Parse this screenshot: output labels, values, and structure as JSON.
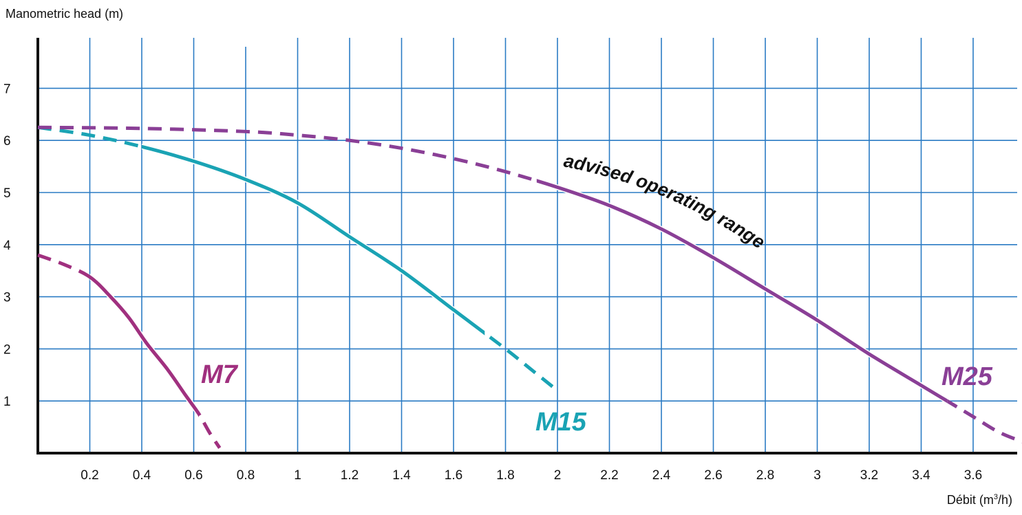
{
  "chart_data": {
    "type": "line",
    "ylabel": "Manometric head (m)",
    "xlabel": {
      "prefix": "Débit (m",
      "sup": "3",
      "suffix": "/h)"
    },
    "xlim": [
      0,
      3.8
    ],
    "ylim": [
      0,
      7.8
    ],
    "grid": true,
    "x_ticks": [
      "0.2",
      "0.4",
      "0.6",
      "0.8",
      "1",
      "1.2",
      "1.4",
      "1.6",
      "1.8",
      "2",
      "2.2",
      "2.4",
      "2.6",
      "2.8",
      "3",
      "3.2",
      "3.4",
      "3.6"
    ],
    "y_ticks": [
      "1",
      "2",
      "3",
      "4",
      "5",
      "6",
      "7"
    ],
    "annotations": [
      {
        "text": "advised operating range"
      }
    ],
    "series": [
      {
        "name": "M7",
        "color": "#a0307f",
        "points": [
          [
            0.0,
            3.8
          ],
          [
            0.1,
            3.62
          ],
          [
            0.2,
            3.38
          ],
          [
            0.28,
            3.0
          ],
          [
            0.35,
            2.6
          ],
          [
            0.42,
            2.1
          ],
          [
            0.5,
            1.6
          ],
          [
            0.57,
            1.1
          ],
          [
            0.62,
            0.75
          ],
          [
            0.66,
            0.4
          ],
          [
            0.7,
            0.1
          ]
        ],
        "solid_range": [
          0.2,
          0.62
        ]
      },
      {
        "name": "M15",
        "color": "#1aa3b4",
        "points": [
          [
            0.0,
            6.25
          ],
          [
            0.2,
            6.1
          ],
          [
            0.4,
            5.88
          ],
          [
            0.6,
            5.6
          ],
          [
            0.8,
            5.25
          ],
          [
            1.0,
            4.8
          ],
          [
            1.2,
            4.15
          ],
          [
            1.4,
            3.5
          ],
          [
            1.6,
            2.75
          ],
          [
            1.8,
            2.0
          ],
          [
            1.9,
            1.6
          ],
          [
            2.0,
            1.2
          ]
        ],
        "solid_range": [
          0.4,
          1.72
        ]
      },
      {
        "name": "M25",
        "color": "#8a3f96",
        "points": [
          [
            0.0,
            6.25
          ],
          [
            0.4,
            6.23
          ],
          [
            0.8,
            6.17
          ],
          [
            1.0,
            6.1
          ],
          [
            1.2,
            6.0
          ],
          [
            1.4,
            5.85
          ],
          [
            1.6,
            5.65
          ],
          [
            1.8,
            5.4
          ],
          [
            2.0,
            5.1
          ],
          [
            2.2,
            4.75
          ],
          [
            2.4,
            4.3
          ],
          [
            2.6,
            3.75
          ],
          [
            2.8,
            3.15
          ],
          [
            3.0,
            2.55
          ],
          [
            3.2,
            1.9
          ],
          [
            3.4,
            1.3
          ],
          [
            3.5,
            1.0
          ],
          [
            3.6,
            0.7
          ],
          [
            3.7,
            0.4
          ],
          [
            3.8,
            0.2
          ]
        ],
        "solid_range": [
          1.92,
          3.5
        ]
      }
    ]
  }
}
